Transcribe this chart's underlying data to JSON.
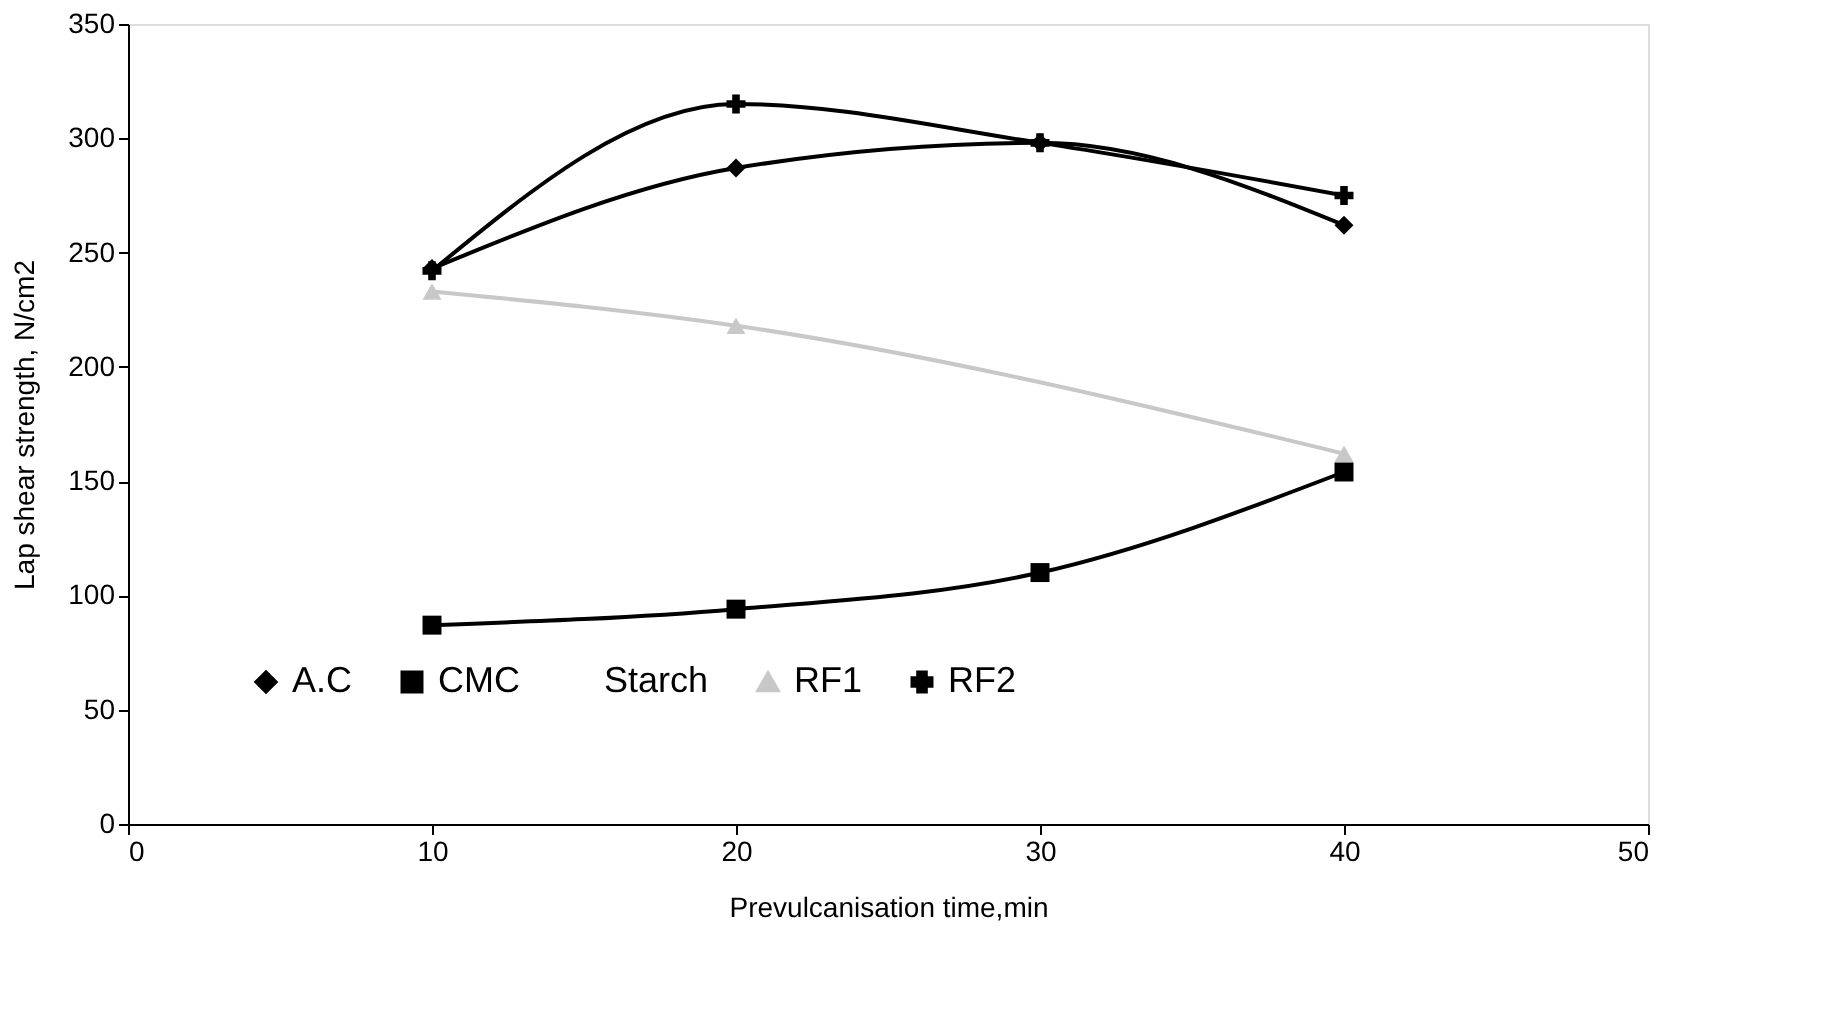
{
  "chart_data": {
    "type": "line",
    "xlabel": "Prevulcanisation time,min",
    "ylabel": "Lap shear strength, N/cm2",
    "x": [
      10,
      20,
      30,
      40
    ],
    "series": [
      {
        "name": "A.C",
        "color": "#000000",
        "marker": "diamond",
        "values": [
          243,
          287,
          298,
          262
        ]
      },
      {
        "name": "CMC",
        "color": "#000000",
        "marker": "square",
        "values": [
          87,
          94,
          110,
          154
        ]
      },
      {
        "name": "Starch",
        "marker": "none",
        "values": [
          null,
          null,
          null,
          null
        ]
      },
      {
        "name": "RF1",
        "color": "#c8c8c8",
        "marker": "triangle",
        "values": [
          233,
          218,
          null,
          162
        ]
      },
      {
        "name": "RF2",
        "color": "#000000",
        "marker": "cross",
        "values": [
          242,
          315,
          298,
          275
        ]
      }
    ],
    "xlim": [
      0,
      50
    ],
    "xticks": [
      0,
      10,
      20,
      30,
      40,
      50
    ],
    "ylim": [
      0,
      350
    ],
    "yticks": [
      0,
      50,
      100,
      150,
      200,
      250,
      300,
      350
    ],
    "grid": false,
    "legend": "bottom"
  }
}
